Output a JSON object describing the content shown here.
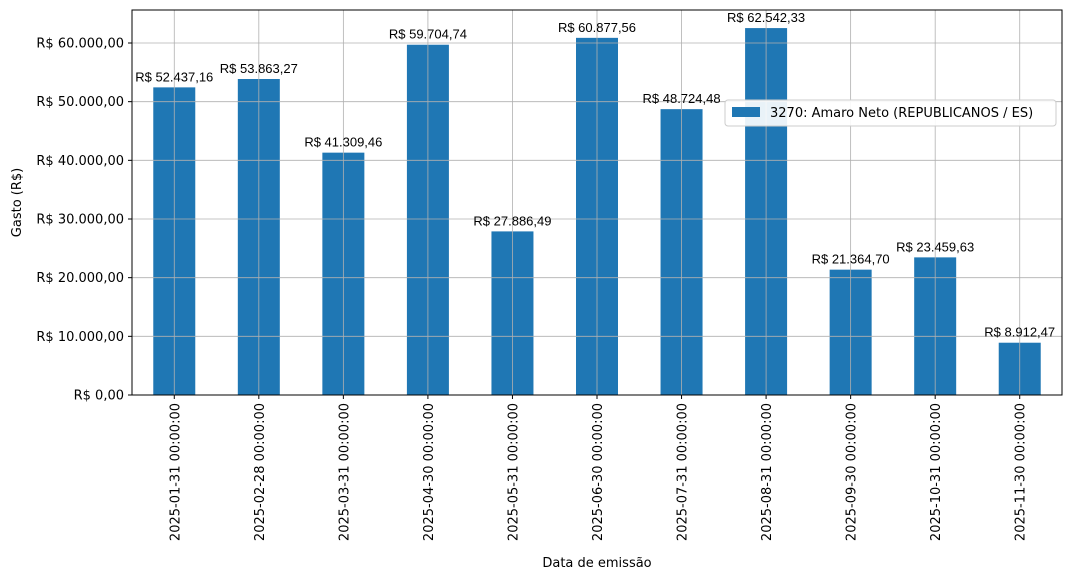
{
  "chart_data": {
    "type": "bar",
    "xlabel": "Data de emissão",
    "ylabel": "Gasto (R$)",
    "ylim": [
      0,
      66000
    ],
    "grid": true,
    "legend_placement": "top-left",
    "bar_color": "#1f77b4",
    "categories": [
      "2025-01-31 00:00:00",
      "2025-02-28 00:00:00",
      "2025-03-31 00:00:00",
      "2025-04-30 00:00:00",
      "2025-05-31 00:00:00",
      "2025-06-30 00:00:00",
      "2025-07-31 00:00:00",
      "2025-08-31 00:00:00",
      "2025-09-30 00:00:00",
      "2025-10-31 00:00:00",
      "2025-11-30 00:00:00"
    ],
    "series": [
      {
        "name": "3270: Amaro Neto (REPUBLICANOS / ES)",
        "values": [
          52437.16,
          53863.27,
          41309.46,
          59704.74,
          27886.49,
          60877.56,
          48724.48,
          62542.33,
          21364.7,
          23459.63,
          8912.47
        ],
        "labels": [
          "R$ 52.437,16",
          "R$ 53.863,27",
          "R$ 41.309,46",
          "R$ 59.704,74",
          "R$ 27.886,49",
          "R$ 60.877,56",
          "R$ 48.724,48",
          "R$ 62.542,33",
          "R$ 21.364,70",
          "R$ 23.459,63",
          "R$ 8.912,47"
        ]
      }
    ],
    "yticks": [
      0,
      10000,
      20000,
      30000,
      40000,
      50000,
      60000
    ],
    "ytick_labels": [
      "R$ 0,00",
      "R$ 10.000,00",
      "R$ 20.000,00",
      "R$ 30.000,00",
      "R$ 40.000,00",
      "R$ 50.000,00",
      "R$ 60.000,00"
    ]
  }
}
